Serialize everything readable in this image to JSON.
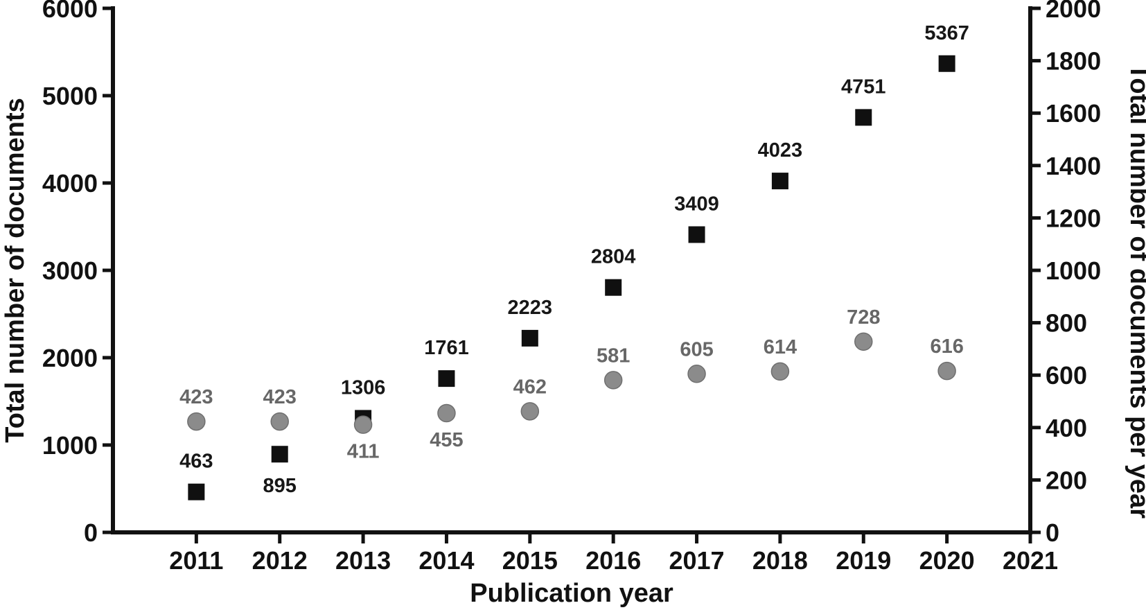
{
  "chart_data": {
    "type": "scatter",
    "title": "",
    "xlabel": "Publication year",
    "ylabel_left": "Total number of documents",
    "ylabel_right": "Total number of documents per year",
    "grid": false,
    "legend": null,
    "background_color": "#ffffff",
    "axis_color": "#111111",
    "tick_label_color": "#111111",
    "x_axis": {
      "min": 2010,
      "max": 2021,
      "ticks": [
        2011,
        2012,
        2013,
        2014,
        2015,
        2016,
        2017,
        2018,
        2019,
        2020,
        2021
      ],
      "tick_labels": [
        "2011",
        "2012",
        "2013",
        "2014",
        "2015",
        "2016",
        "2017",
        "2018",
        "2019",
        "2020",
        "2021"
      ]
    },
    "left_axis": {
      "min": 0,
      "max": 6000,
      "step": 1000,
      "ticks": [
        0,
        1000,
        2000,
        3000,
        4000,
        5000,
        6000
      ],
      "tick_labels": [
        "0",
        "1000",
        "2000",
        "3000",
        "4000",
        "5000",
        "6000"
      ]
    },
    "right_axis": {
      "min": 0,
      "max": 2000,
      "step": 200,
      "ticks": [
        0,
        200,
        400,
        600,
        800,
        1000,
        1200,
        1400,
        1600,
        1800,
        2000
      ],
      "tick_labels": [
        "0",
        "200",
        "400",
        "600",
        "800",
        "1000",
        "1200",
        "1400",
        "1600",
        "1800",
        "2000"
      ]
    },
    "x": [
      2011,
      2012,
      2013,
      2014,
      2015,
      2016,
      2017,
      2018,
      2019,
      2020
    ],
    "series": [
      {
        "name": "Total number of documents",
        "axis": "left",
        "marker": "square",
        "marker_color": "#101010",
        "marker_edge_color": "#101010",
        "label_color": "#171717",
        "values": [
          463,
          895,
          1306,
          1761,
          2223,
          2804,
          3409,
          4023,
          4751,
          5367
        ],
        "labels": [
          "463",
          "895",
          "1306",
          "1761",
          "2223",
          "2804",
          "3409",
          "4023",
          "4751",
          "5367"
        ],
        "label_placement": [
          "above",
          "below",
          "above",
          "above",
          "above",
          "above",
          "above",
          "above",
          "above",
          "above"
        ]
      },
      {
        "name": "Total number of documents per year",
        "axis": "right",
        "marker": "circle",
        "marker_color": "#8b8b8b",
        "marker_edge_color": "#6f6f6f",
        "label_color": "#676767",
        "values": [
          423,
          423,
          411,
          455,
          462,
          581,
          605,
          614,
          728,
          616
        ],
        "labels": [
          "423",
          "423",
          "411",
          "455",
          "462",
          "581",
          "605",
          "614",
          "728",
          "616"
        ],
        "label_placement": [
          "above",
          "above",
          "below",
          "below",
          "above",
          "above",
          "above",
          "above",
          "above",
          "above"
        ]
      }
    ]
  }
}
